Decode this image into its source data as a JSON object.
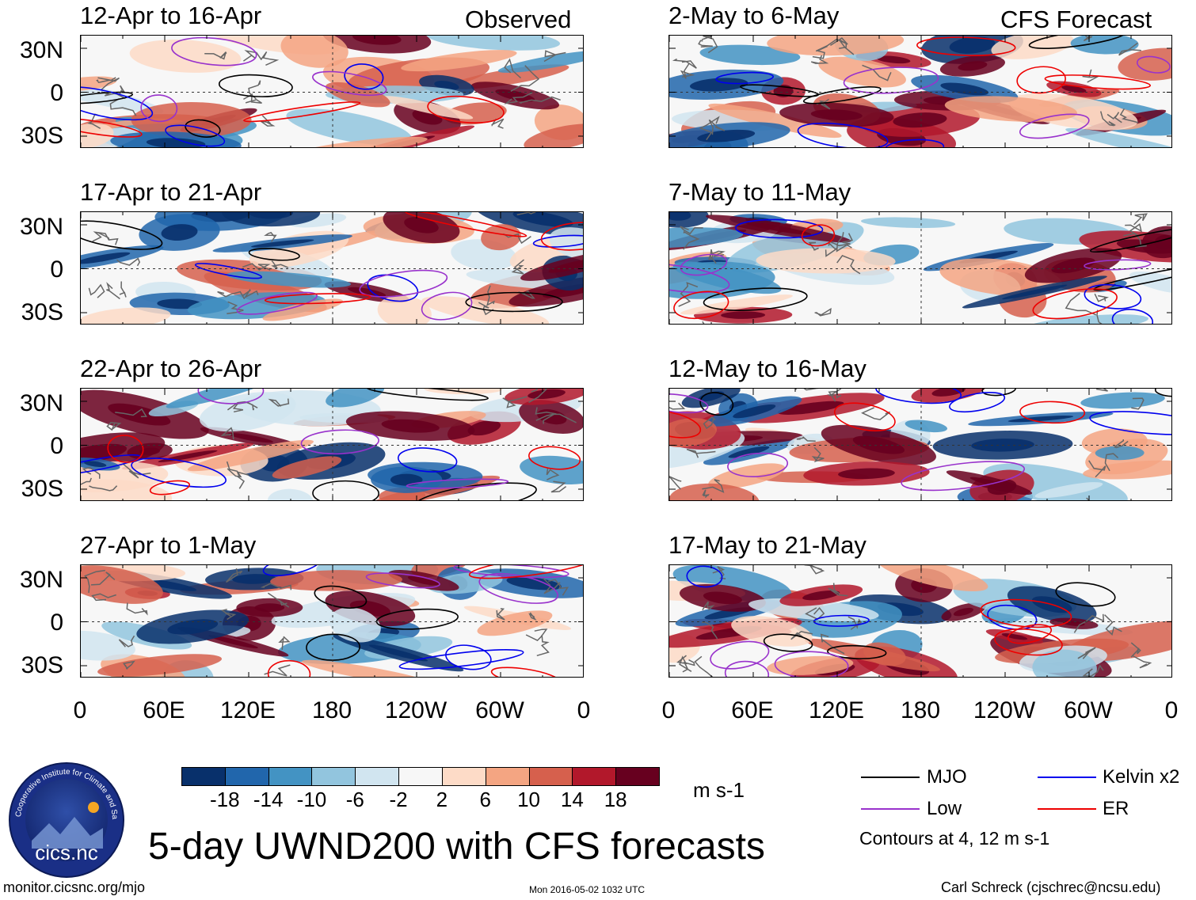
{
  "title": "5-day UWND200 with CFS forecasts",
  "columns": {
    "left_label": "Observed",
    "right_label": "CFS Forecast"
  },
  "panels_observed": [
    "12-Apr to 16-Apr",
    "17-Apr to 21-Apr",
    "22-Apr to 26-Apr",
    "27-Apr to 1-May"
  ],
  "panels_forecast": [
    "2-May to 6-May",
    "7-May to 11-May",
    "12-May to 16-May",
    "17-May to 21-May"
  ],
  "lat_labels": [
    "30N",
    "0",
    "30S"
  ],
  "lon_labels": [
    "0",
    "60E",
    "120E",
    "180",
    "120W",
    "60W",
    "0"
  ],
  "colorbar": {
    "colors": [
      "#08306b",
      "#2166ac",
      "#4393c3",
      "#92c5de",
      "#d1e5f0",
      "#f7f7f7",
      "#fddbc7",
      "#f4a582",
      "#d6604d",
      "#b2182b",
      "#67001f"
    ],
    "labels": [
      "-18",
      "-14",
      "-10",
      "-6",
      "-2",
      "2",
      "6",
      "10",
      "14",
      "18"
    ],
    "units": "m s-1"
  },
  "legend": {
    "items": [
      {
        "label": "MJO",
        "color": "#000000"
      },
      {
        "label": "Kelvin x2",
        "color": "#0000ee"
      },
      {
        "label": "Low",
        "color": "#9932cc"
      },
      {
        "label": "ER",
        "color": "#ee0000"
      }
    ],
    "note": "Contours at 4, 12 m s-1"
  },
  "logo": {
    "text": "cics.nc",
    "ring_text": "Cooperative Institute for Climate and Satellites"
  },
  "footer": {
    "url": "monitor.cicsnc.org/mjo",
    "timestamp": "Mon 2016-05-02 1032 UTC",
    "credit": "Carl Schreck (cjschrec@ncsu.edu)"
  }
}
